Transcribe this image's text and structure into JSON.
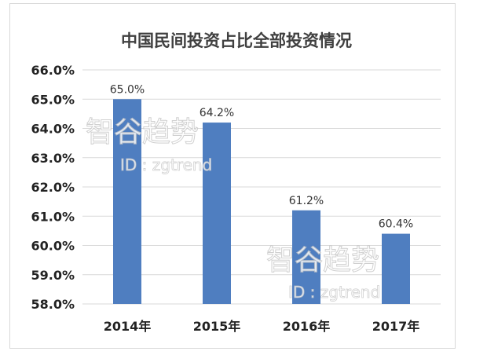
{
  "chart_data": {
    "type": "bar",
    "title": "中国民间投资占比全部投资情况",
    "categories": [
      "2014年",
      "2015年",
      "2016年",
      "2017年"
    ],
    "values": [
      65.0,
      64.2,
      61.2,
      60.4
    ],
    "data_labels": [
      "65.0%",
      "64.2%",
      "61.2%",
      "60.4%"
    ],
    "ylim": [
      58,
      66
    ],
    "yticks": [
      58,
      59,
      60,
      61,
      62,
      63,
      64,
      65,
      66
    ],
    "ytick_labels": [
      "58.0%",
      "59.0%",
      "60.0%",
      "61.0%",
      "62.0%",
      "63.0%",
      "64.0%",
      "65.0%",
      "66.0%"
    ],
    "grid": true,
    "bar_color": "#4f7ec0",
    "grid_color": "#d9d9d9"
  },
  "watermarks": [
    {
      "brand": "智谷趋势",
      "id_text": "ID : zgtrend"
    },
    {
      "brand": "智谷趋势",
      "id_text": "ID : zgtrend"
    }
  ]
}
